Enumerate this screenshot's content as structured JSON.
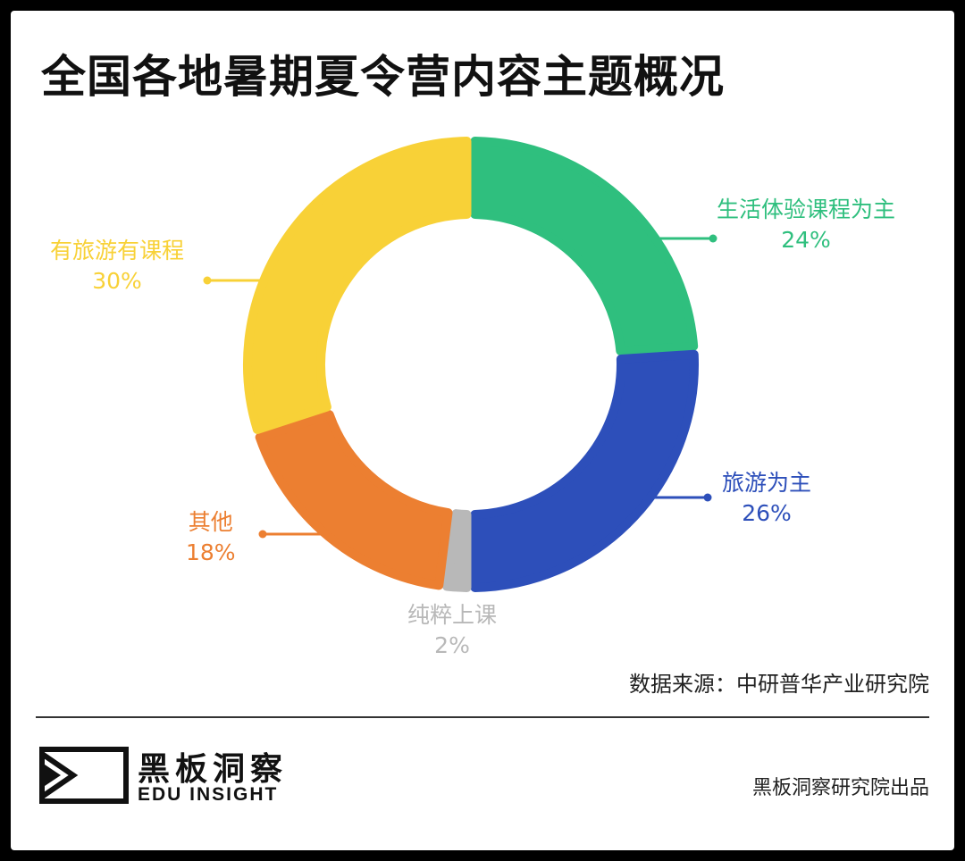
{
  "title": "全国各地暑期夏令营内容主题概况",
  "chart_data": {
    "type": "pie",
    "variant": "donut",
    "title": "全国各地暑期夏令营内容主题概况",
    "slices": [
      {
        "label": "生活体验课程为主",
        "value": 24,
        "value_label": "24%",
        "color": "#2fbf7e"
      },
      {
        "label": "旅游为主",
        "value": 26,
        "value_label": "26%",
        "color": "#2d4fba"
      },
      {
        "label": "纯粹上课",
        "value": 2,
        "value_label": "2%",
        "color": "#b8b8b8"
      },
      {
        "label": "其他",
        "value": 18,
        "value_label": "18%",
        "color": "#ec7f31"
      },
      {
        "label": "有旅游有课程",
        "value": 30,
        "value_label": "30%",
        "color": "#f8d137"
      }
    ],
    "start_angle": "12 o'clock",
    "direction": "clockwise",
    "legend": "none (callout labels)"
  },
  "source": "数据来源：中研普华产业研究院",
  "brand": {
    "name": "黑板洞察",
    "sub": "EDU INSIGHT"
  },
  "credit": "黑板洞察研究院出品"
}
